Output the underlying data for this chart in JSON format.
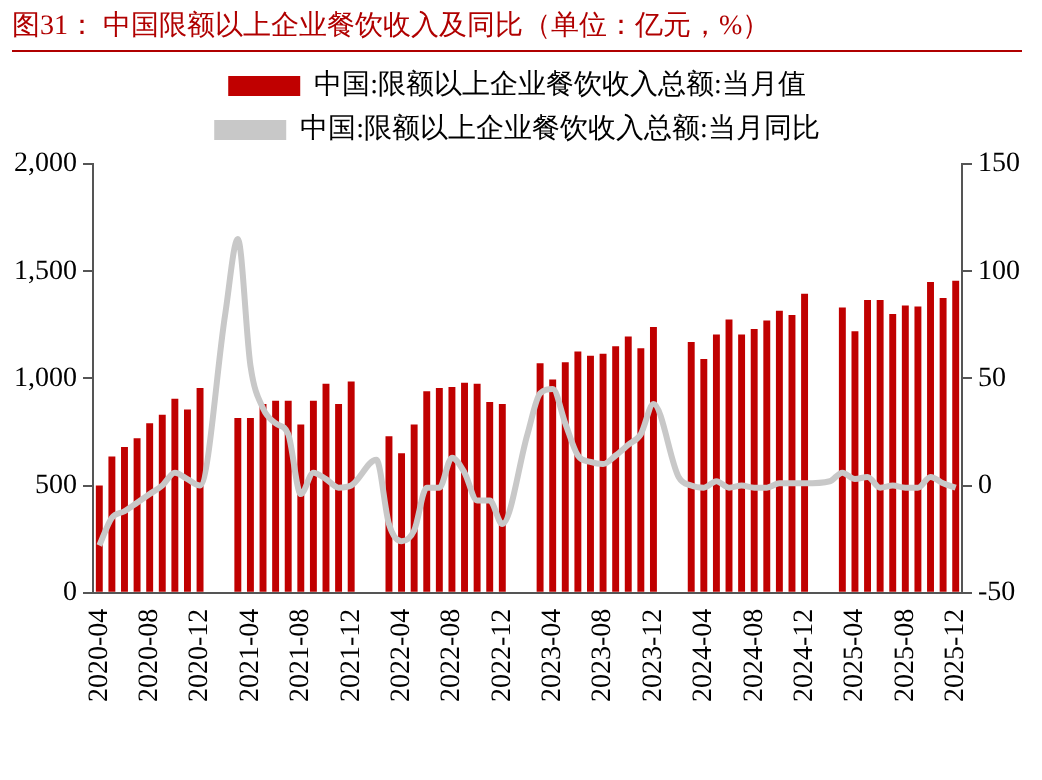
{
  "chart_data": {
    "type": "bar",
    "title": "图31：  中国限额以上企业餐饮收入及同比（单位：亿元，%）",
    "categories": [
      "2020-04",
      null,
      null,
      null,
      "2020-08",
      null,
      null,
      null,
      "2020-12",
      null,
      null,
      null,
      "2021-04",
      null,
      null,
      null,
      "2021-08",
      null,
      null,
      null,
      "2021-12",
      null,
      null,
      null,
      "2022-04",
      null,
      null,
      null,
      "2022-08",
      null,
      null,
      null,
      "2022-12",
      null,
      null,
      null,
      "2023-04",
      null,
      null,
      null,
      "2023-08",
      null,
      null,
      null,
      "2023-12",
      null,
      null,
      null,
      "2024-04",
      null,
      null,
      null,
      "2024-08",
      null,
      null,
      null,
      "2024-12",
      null,
      null,
      null,
      "2025-04",
      null,
      null,
      null,
      "2025-08",
      null,
      null,
      null,
      "2025-12"
    ],
    "series": [
      {
        "name": "中国:限额以上企业餐饮收入总额:当月值",
        "color": "#c00000",
        "values": [
          500,
          635,
          680,
          720,
          790,
          830,
          905,
          855,
          955,
          null,
          null,
          815,
          815,
          880,
          895,
          895,
          785,
          895,
          975,
          880,
          985,
          null,
          null,
          730,
          650,
          785,
          940,
          955,
          960,
          980,
          975,
          890,
          880,
          null,
          null,
          1070,
          995,
          1075,
          1125,
          1105,
          1115,
          1150,
          1195,
          1140,
          1240,
          null,
          null,
          1170,
          1090,
          1205,
          1275,
          1205,
          1230,
          1270,
          1315,
          1295,
          1395,
          null,
          null,
          1330,
          1220,
          1365,
          1365,
          1300,
          1340,
          1335,
          1450,
          1375,
          1455
        ]
      },
      {
        "name": "中国:限额以上企业餐饮收入总额:当月同比",
        "type": "line",
        "axis": "y2",
        "color": "#c8c8c8",
        "values": [
          -28,
          -15,
          -12,
          -8,
          -4,
          0,
          6,
          3,
          0,
          null,
          80,
          115,
          56,
          36,
          29,
          24,
          -4,
          6,
          3,
          -1,
          0,
          null,
          12,
          -18,
          -26,
          -21,
          -1,
          -1,
          13,
          6,
          -7,
          -7,
          -18,
          null,
          24,
          43,
          45,
          29,
          14,
          11,
          10,
          14,
          19,
          24,
          38,
          null,
          4,
          0,
          -1,
          2,
          -1,
          0,
          -1,
          -1,
          1,
          1,
          1,
          null,
          2,
          6,
          3,
          4,
          -1,
          0,
          -1,
          -1,
          4,
          1,
          -1
        ]
      }
    ],
    "ylim": [
      0,
      2000
    ],
    "yticks": [
      0,
      500,
      {
        "value": 1000,
        "label": "1,000"
      },
      {
        "value": 1500,
        "label": "1,500"
      },
      {
        "value": 2000,
        "label": "2,000"
      }
    ],
    "y2lim": [
      -50,
      150
    ],
    "y2ticks": [
      -50,
      0,
      50,
      100,
      150
    ],
    "grid": false,
    "legend": "top"
  }
}
